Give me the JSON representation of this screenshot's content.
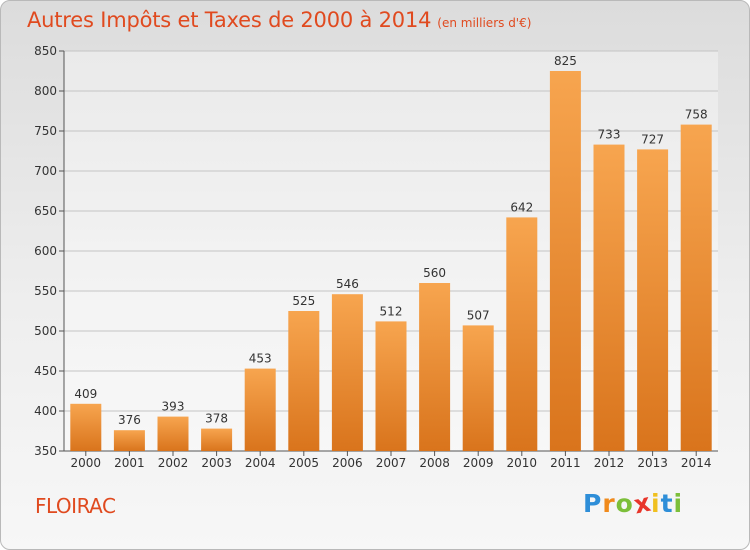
{
  "chart_data": {
    "type": "bar",
    "title": "Autres Impôts et Taxes de 2000 à 2014",
    "subtitle": "(en milliers d'€)",
    "categories": [
      "2000",
      "2001",
      "2002",
      "2003",
      "2004",
      "2005",
      "2006",
      "2007",
      "2008",
      "2009",
      "2010",
      "2011",
      "2012",
      "2013",
      "2014"
    ],
    "values": [
      409,
      376,
      393,
      378,
      453,
      525,
      546,
      512,
      560,
      507,
      642,
      825,
      733,
      727,
      758
    ],
    "ylim": [
      350,
      850
    ],
    "yticks": [
      350,
      400,
      450,
      500,
      550,
      600,
      650,
      700,
      750,
      800,
      850
    ],
    "grid": true,
    "bar_color_top": "#f7a54f",
    "bar_color_bottom": "#d9741c"
  },
  "city": "FLOIRAC",
  "logo": {
    "letters": [
      "P",
      "r",
      "o",
      "x",
      "i",
      "t",
      "i"
    ],
    "colors": [
      "#2e8ed8",
      "#f08a1c",
      "#7cbf3a",
      "#e8352a",
      "#f0c020",
      "#2e8ed8",
      "#7cbf3a"
    ]
  }
}
